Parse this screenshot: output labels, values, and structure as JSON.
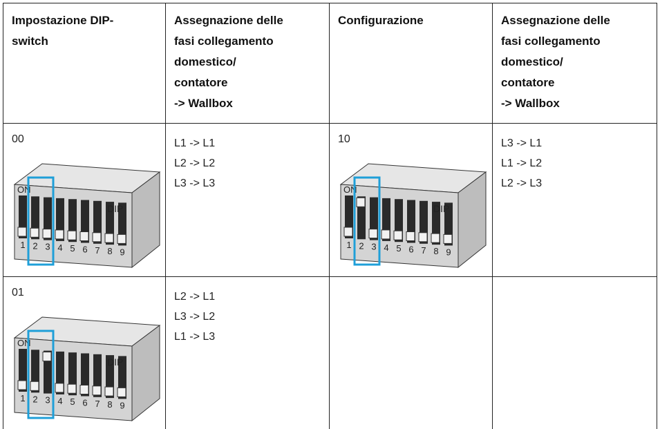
{
  "table": {
    "header": [
      "Impostazione DIP-\nswitch",
      "Assegnazione delle\nfasi collegamento\ndomestico/\ncontatore\n-> Wallbox",
      "Configurazione",
      "Assegnazione delle\nfasi collegamento\ndomestico/\ncontatore\n-> Wallbox"
    ],
    "rows": [
      [
        {
          "setting": "00"
        },
        {
          "phases": [
            "L1 -> L1",
            "L2 -> L2",
            "L3 -> L3"
          ]
        },
        {
          "setting": "10"
        },
        {
          "phases": [
            "L3 -> L1",
            "L1 -> L2",
            "L2 -> L3"
          ]
        }
      ],
      [
        {
          "setting": "01"
        },
        {
          "phases": [
            "L2 -> L1",
            "L3 -> L2",
            "L1 -> L3"
          ]
        },
        {},
        {}
      ]
    ]
  },
  "dip_labels": {
    "on": "ON",
    "dip": "DIP",
    "numbers": [
      "1",
      "2",
      "3",
      "4",
      "5",
      "6",
      "7",
      "8",
      "9"
    ]
  }
}
